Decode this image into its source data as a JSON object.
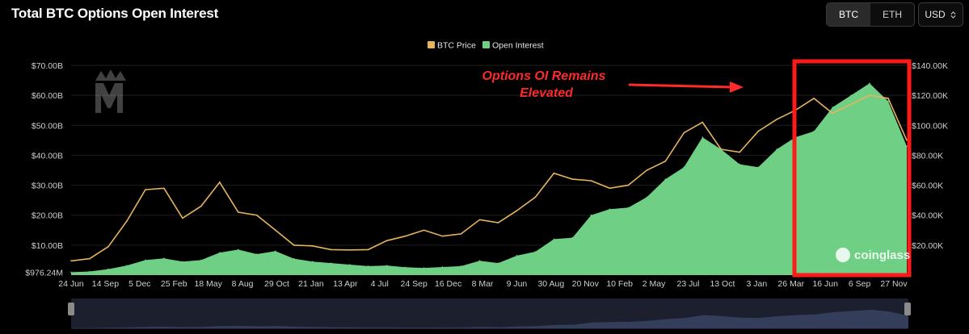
{
  "header": {
    "title": "Total BTC Options Open Interest",
    "asset_tabs": [
      {
        "label": "BTC",
        "active": true
      },
      {
        "label": "ETH",
        "active": false
      }
    ],
    "currency_select": "USD"
  },
  "annotation": {
    "line1": "Options OI Remains",
    "line2": "Elevated"
  },
  "watermark": "coinglass",
  "colors": {
    "oi": "#6fcf85",
    "price": "#e6b45c",
    "highlight": "#ff1a1a",
    "annotation": "#ff2a2a"
  },
  "chart_data": {
    "type": "area",
    "title": "Total BTC Options Open Interest",
    "x_ticks": [
      "24 Jun",
      "14 Sep",
      "5 Dec",
      "25 Feb",
      "18 May",
      "8 Aug",
      "29 Oct",
      "21 Jan",
      "13 Apr",
      "4 Jul",
      "24 Sep",
      "16 Dec",
      "8 Mar",
      "9 Jun",
      "30 Aug",
      "20 Nov",
      "10 Feb",
      "2 May",
      "23 Jul",
      "13 Oct",
      "3 Jan",
      "26 Mar",
      "16 Jun",
      "6 Sep",
      "27 Nov"
    ],
    "y_left_ticks": [
      "$976.24M",
      "$10.00B",
      "$20.00B",
      "$30.00B",
      "$40.00B",
      "$50.00B",
      "$60.00B",
      "$70.00B"
    ],
    "y_right_ticks": [
      "$20.00K",
      "$40.00K",
      "$60.00K",
      "$80.00K",
      "$100.00K",
      "$120.00K",
      "$140.00K"
    ],
    "y_left_range": [
      0,
      70
    ],
    "y_right_range": [
      0,
      140
    ],
    "legend": [
      "BTC Price",
      "Open Interest"
    ],
    "legend_position": "top-center",
    "series": [
      {
        "name": "Open Interest",
        "axis": "left",
        "unit": "B USD",
        "values": [
          0.976,
          1.2,
          2.0,
          3.2,
          5.0,
          5.6,
          4.5,
          5.0,
          7.5,
          8.5,
          7.0,
          8.0,
          5.5,
          4.5,
          4.0,
          3.5,
          3.0,
          3.2,
          2.6,
          2.4,
          2.7,
          3.0,
          4.8,
          4.0,
          6.5,
          7.8,
          12.0,
          12.5,
          20.0,
          22.0,
          22.5,
          26.0,
          32.0,
          36.0,
          46.0,
          42.0,
          37.0,
          36.0,
          42.0,
          46.0,
          48.0,
          56.0,
          60.0,
          64.0,
          58.0,
          43.0
        ]
      },
      {
        "name": "BTC Price",
        "axis": "right",
        "unit": "K USD",
        "values": [
          9.5,
          11.0,
          19.0,
          36.0,
          57.0,
          58.0,
          38.0,
          46.0,
          62.0,
          42.0,
          40.0,
          30.0,
          20.0,
          19.5,
          17.0,
          16.8,
          17.0,
          23.0,
          26.0,
          30.0,
          26.0,
          27.5,
          37.0,
          35.0,
          43.0,
          52.0,
          68.0,
          64.0,
          63.0,
          58.0,
          60.0,
          70.0,
          76.0,
          95.0,
          102.0,
          84.0,
          82.0,
          96.0,
          104.0,
          110.0,
          118.0,
          108.0,
          114.0,
          120.0,
          118.0,
          90.0
        ]
      }
    ]
  }
}
